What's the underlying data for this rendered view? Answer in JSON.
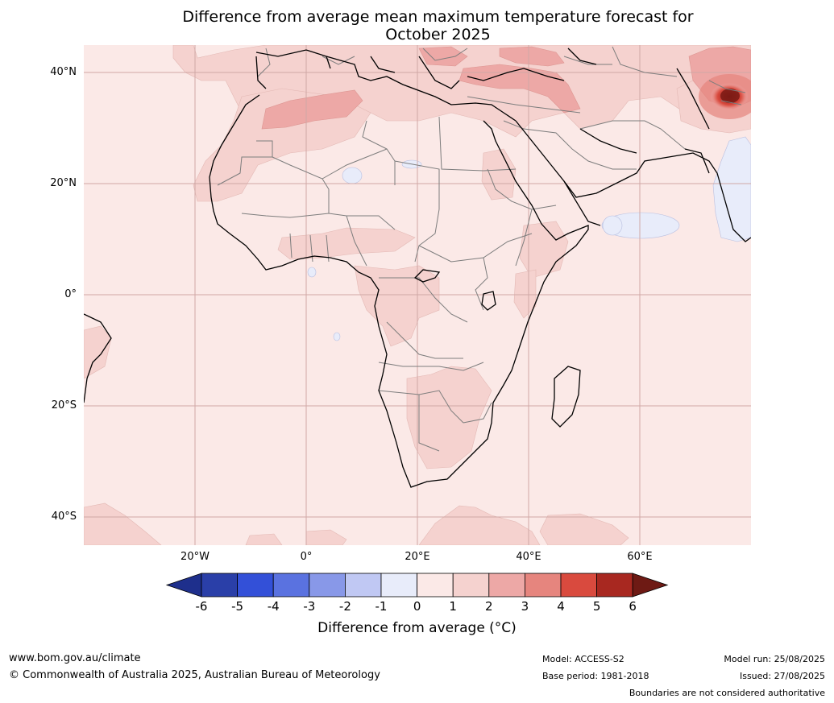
{
  "title": {
    "line1": "Difference from average mean maximum temperature forecast for",
    "line2": "October 2025"
  },
  "map": {
    "lat_ticks": [
      "40°N",
      "20°N",
      "0°",
      "20°S",
      "40°S"
    ],
    "lon_ticks": [
      "20°W",
      "0°",
      "20°E",
      "40°E",
      "60°E"
    ],
    "extent": {
      "lon": [
        -40,
        80
      ],
      "lat": [
        -45,
        45
      ]
    },
    "gridlines": true,
    "colors": {
      "ocean_base": "#fbe9e7",
      "warm_1_2": "#f5d2cf",
      "warm_2_3": "#eda8a6",
      "warm_3_4": "#e6857e",
      "warm_5_6": "#a82820",
      "cool_-1_0": "#e8ecfa",
      "coast": "#000000",
      "border": "#808080"
    }
  },
  "colorbar": {
    "label": "Difference from average (°C)",
    "tick_labels": [
      "-6",
      "-5",
      "-4",
      "-3",
      "-2",
      "-1",
      "0",
      "1",
      "2",
      "3",
      "4",
      "5",
      "6"
    ],
    "colors": [
      "#1e2f8c",
      "#2a3fa8",
      "#3350d8",
      "#5a72e0",
      "#8898e8",
      "#c0c8f3",
      "#e8ecfa",
      "#fbe9e7",
      "#f5d2cf",
      "#eda8a6",
      "#e6857e",
      "#d94a3e",
      "#a82820",
      "#6e1a14"
    ]
  },
  "footer": {
    "website": "www.bom.gov.au/climate",
    "copyright": "© Commonwealth of Australia 2025, Australian Bureau of Meteorology",
    "model": "Model: ACCESS-S2",
    "base_period": "Base period: 1981-2018",
    "model_run": "Model run: 25/08/2025",
    "issued": "Issued: 27/08/2025",
    "disclaimer": "Boundaries are not considered authoritative"
  }
}
